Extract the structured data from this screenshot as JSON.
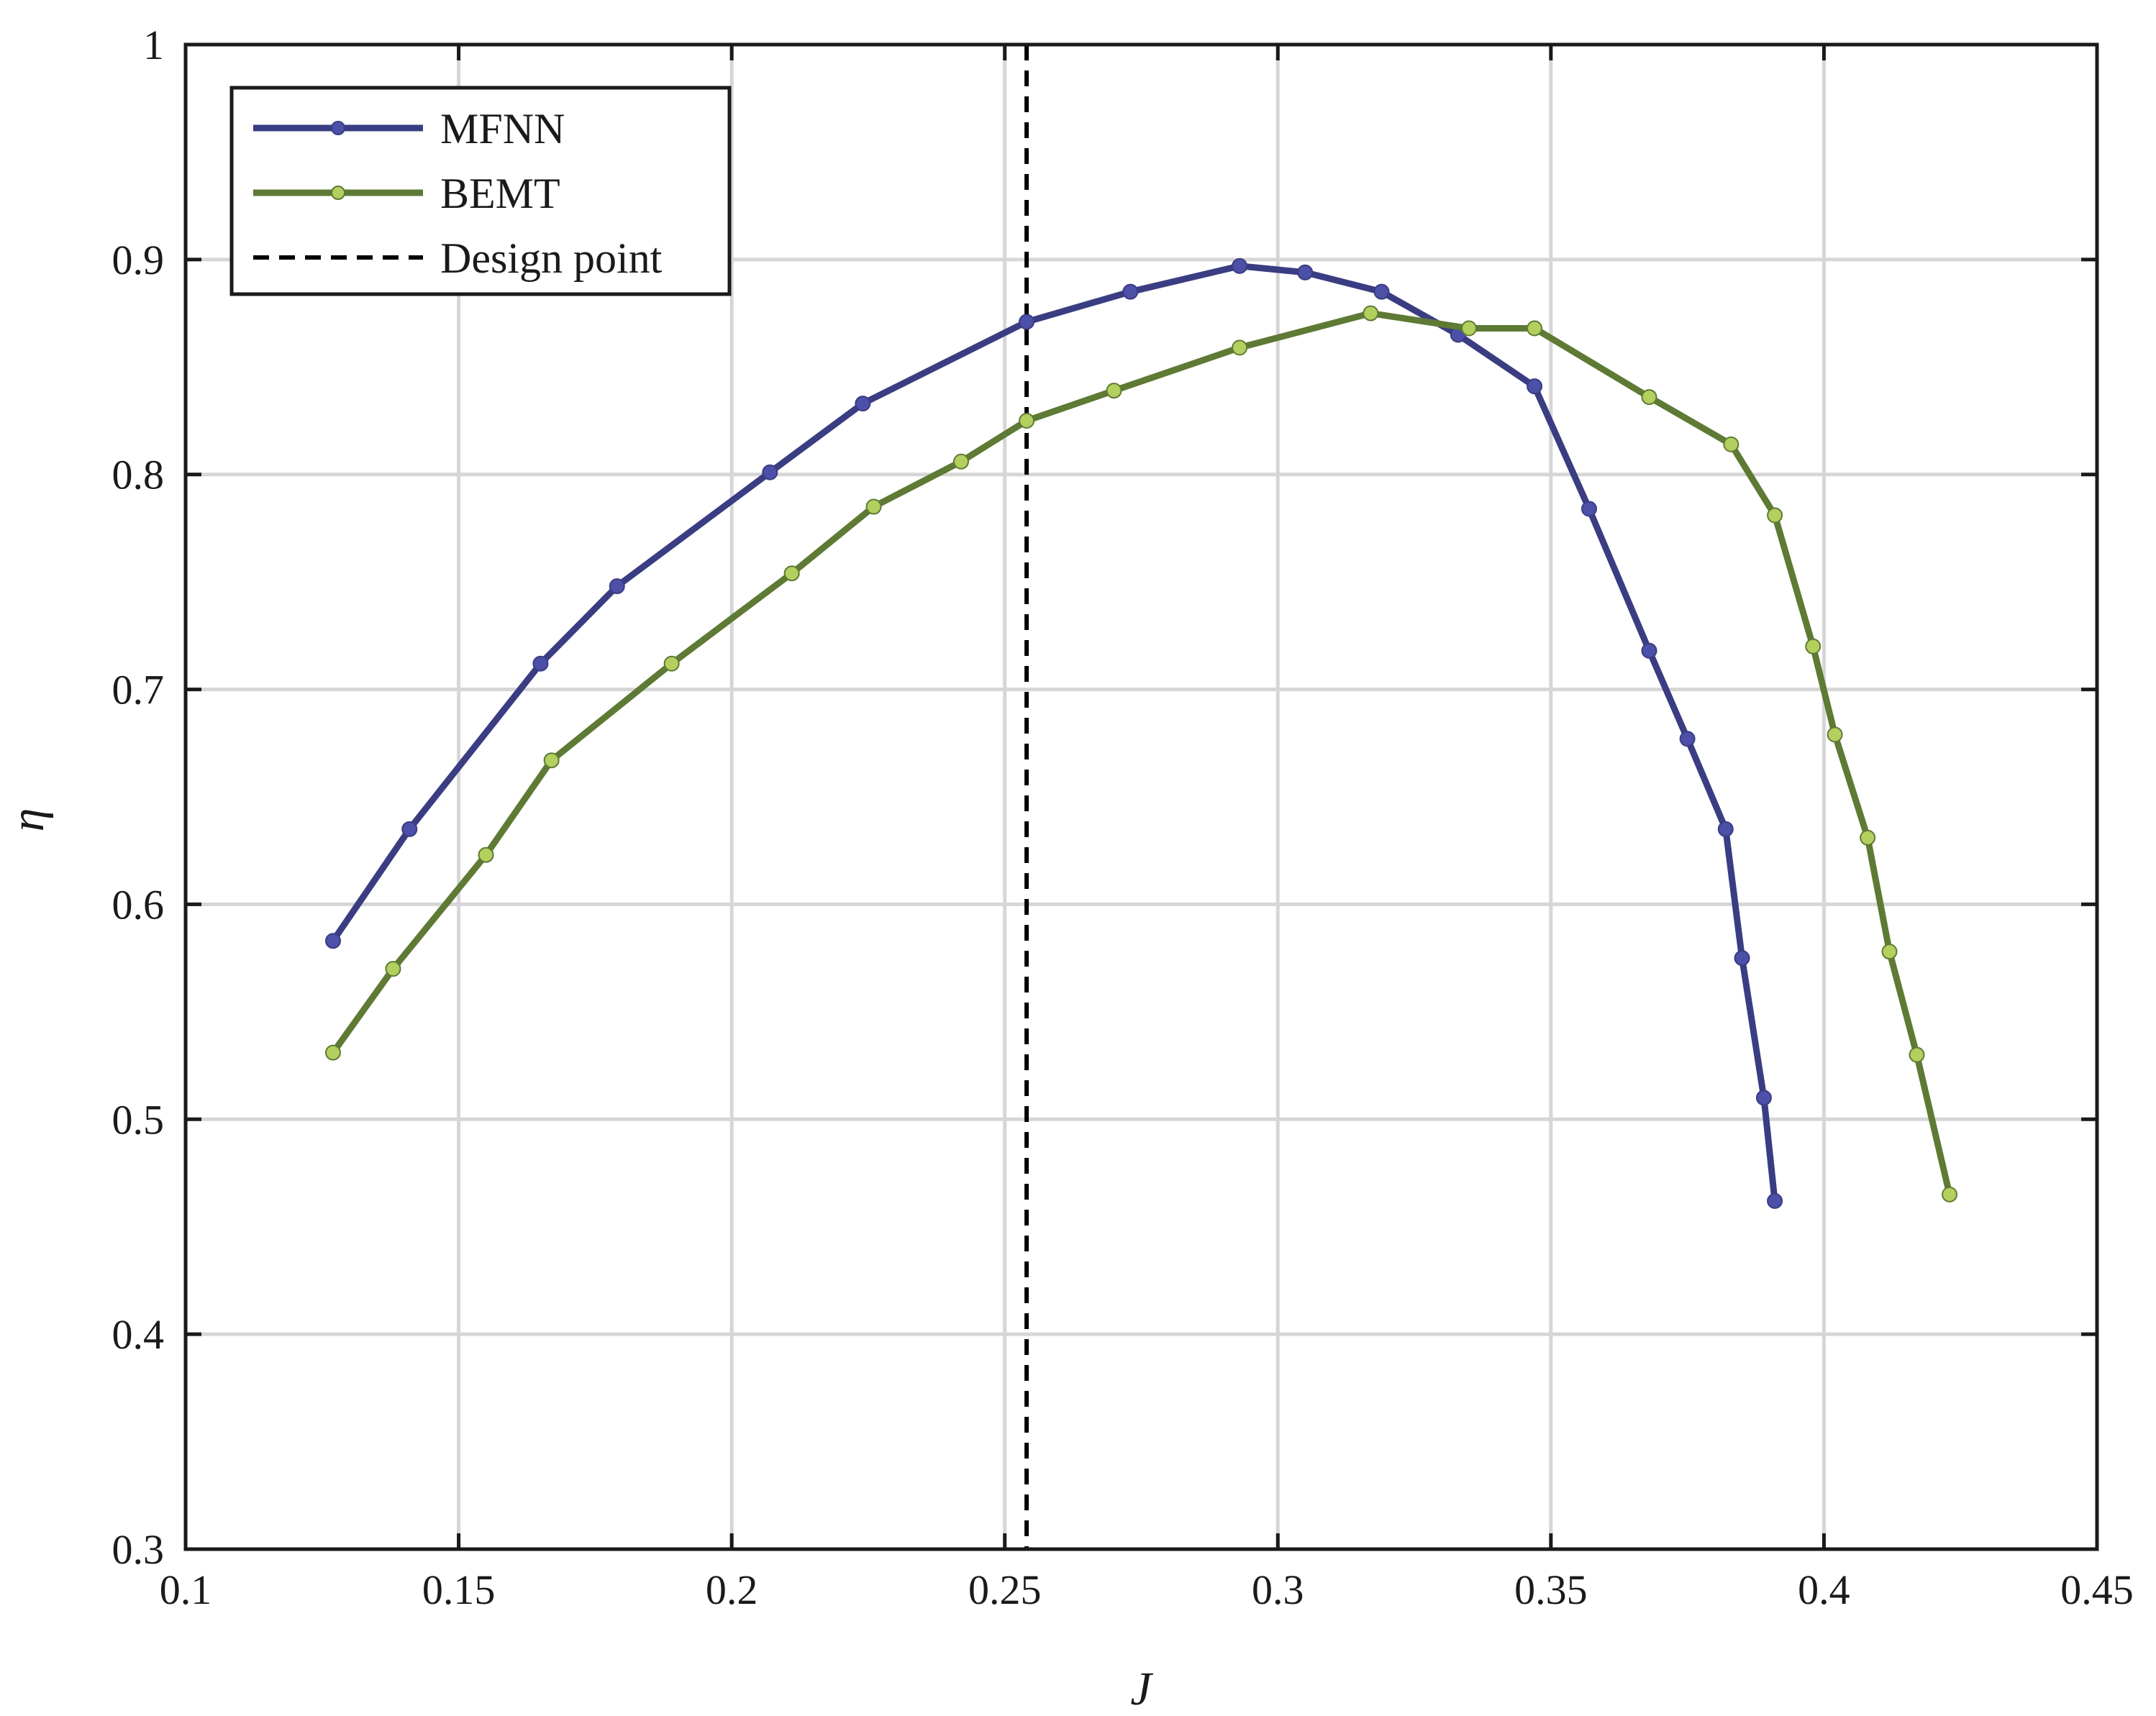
{
  "chart_data": {
    "type": "line",
    "title": "",
    "xlabel": "J",
    "ylabel": "η",
    "xlim": [
      0.1,
      0.45
    ],
    "ylim": [
      0.3,
      1.0
    ],
    "x_ticks": [
      0.1,
      0.15,
      0.2,
      0.25,
      0.3,
      0.35,
      0.4,
      0.45
    ],
    "x_tick_labels": [
      "0.1",
      "0.15",
      "0.2",
      "0.25",
      "0.3",
      "0.35",
      "0.4",
      "0.45"
    ],
    "y_ticks": [
      0.3,
      0.4,
      0.5,
      0.6,
      0.7,
      0.8,
      0.9,
      1.0
    ],
    "y_tick_labels": [
      "0.3",
      "0.4",
      "0.5",
      "0.6",
      "0.7",
      "0.8",
      "0.9",
      "1"
    ],
    "grid": true,
    "legend_position": "top-left",
    "series": [
      {
        "name": "MFNN",
        "color": "#3a3d82",
        "marker_color": "#4c50a8",
        "x": [
          0.127,
          0.141,
          0.165,
          0.179,
          0.207,
          0.224,
          0.254,
          0.273,
          0.293,
          0.305,
          0.319,
          0.333,
          0.347,
          0.357,
          0.368,
          0.375,
          0.382,
          0.385,
          0.389,
          0.391
        ],
        "y": [
          0.583,
          0.635,
          0.712,
          0.748,
          0.801,
          0.833,
          0.871,
          0.885,
          0.897,
          0.894,
          0.885,
          0.865,
          0.841,
          0.784,
          0.718,
          0.677,
          0.635,
          0.575,
          0.51,
          0.462
        ]
      },
      {
        "name": "BEMT",
        "color": "#5e7a34",
        "marker_color": "#b3cf5e",
        "x": [
          0.127,
          0.138,
          0.155,
          0.167,
          0.189,
          0.211,
          0.226,
          0.242,
          0.254,
          0.27,
          0.293,
          0.317,
          0.335,
          0.347,
          0.368,
          0.383,
          0.391,
          0.398,
          0.402,
          0.408,
          0.412,
          0.417,
          0.423
        ],
        "y": [
          0.531,
          0.57,
          0.623,
          0.667,
          0.712,
          0.754,
          0.785,
          0.806,
          0.825,
          0.839,
          0.859,
          0.875,
          0.868,
          0.868,
          0.836,
          0.814,
          0.781,
          0.72,
          0.679,
          0.631,
          0.578,
          0.53,
          0.465
        ]
      }
    ],
    "reference_lines": [
      {
        "name": "Design point",
        "orientation": "vertical",
        "x": 0.254,
        "style": "dashed",
        "color": "#000000"
      }
    ]
  }
}
